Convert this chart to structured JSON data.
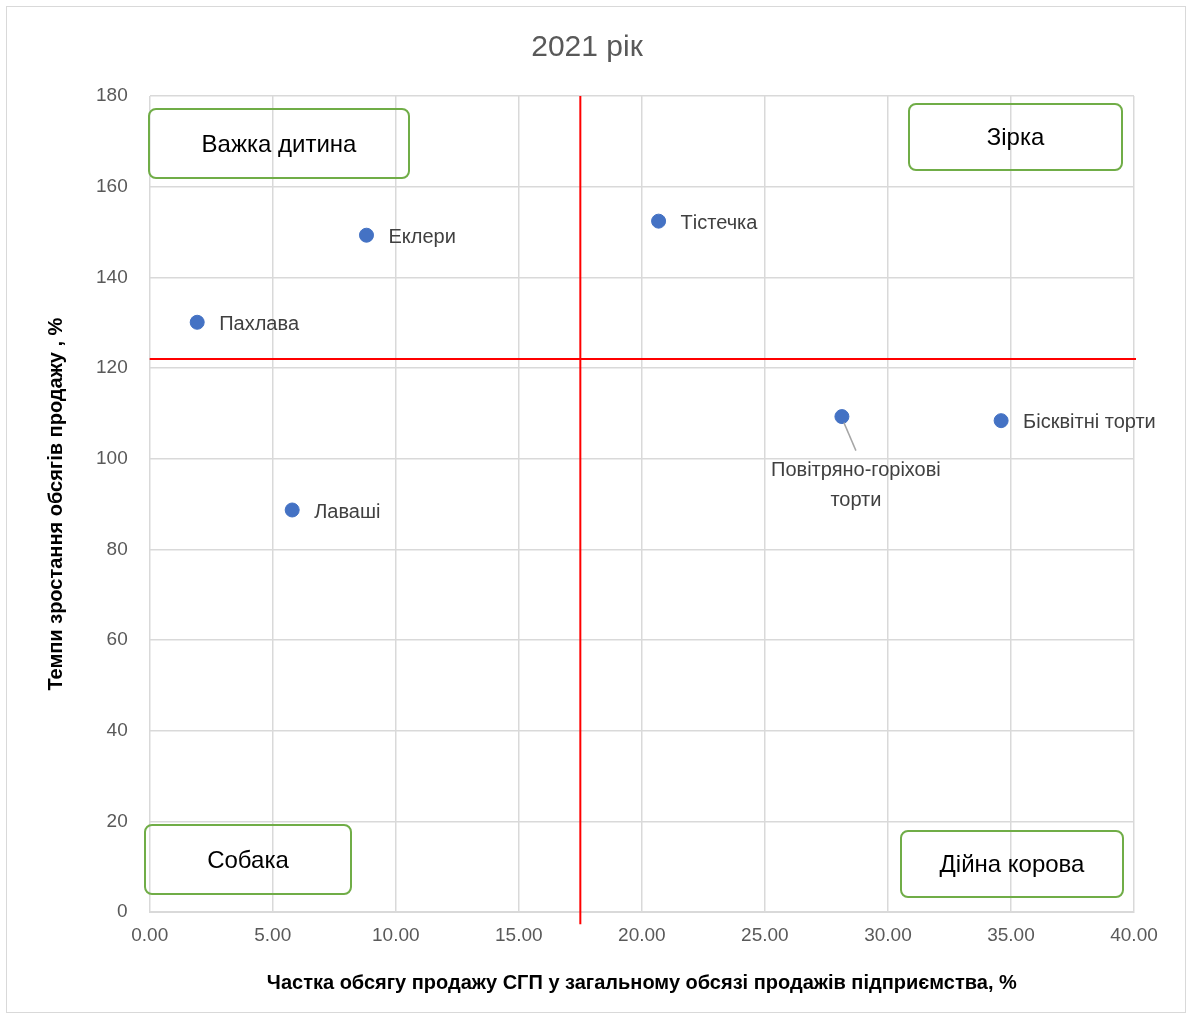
{
  "chart_data": {
    "type": "scatter",
    "title": "2021 рік",
    "xlabel": "Частка обсягу продажу СГП у загальному обсязі продажів підприємства, %",
    "ylabel": "Темпи зростання обсягів продажу , %",
    "x": [
      1.93,
      8.81,
      5.79,
      20.68,
      28.13,
      34.6
    ],
    "series": [
      {
        "color": "#4472c4",
        "values": [
          130.1,
          149.3,
          88.7,
          152.4,
          109.3,
          108.4
        ]
      }
    ],
    "xlim": [
      0,
      40
    ],
    "xticks": [
      {
        "value": 0,
        "label": "0.00"
      },
      {
        "value": 5,
        "label": "5.00"
      },
      {
        "value": 10,
        "label": "10.00"
      },
      {
        "value": 15,
        "label": "15.00"
      },
      {
        "value": 20,
        "label": "20.00"
      },
      {
        "value": 25,
        "label": "25.00"
      },
      {
        "value": 30,
        "label": "30.00"
      },
      {
        "value": 35,
        "label": "35.00"
      },
      {
        "value": 40,
        "label": "40.00"
      }
    ],
    "ylim": [
      0,
      180
    ],
    "yticks": [
      0,
      20,
      40,
      60,
      80,
      100,
      120,
      140,
      160,
      180
    ],
    "grid": true,
    "legend": false,
    "marker": "circle",
    "ref_lines": [
      {
        "axis": "x",
        "value": 17.5,
        "color": "#ff0000"
      },
      {
        "axis": "y",
        "value": 122,
        "color": "#ff0000"
      }
    ],
    "annotations": [
      {
        "text": "Пахлава",
        "x": 1.93,
        "y": 130.1
      },
      {
        "text": "Еклери",
        "x": 8.81,
        "y": 149.3
      },
      {
        "text": "Лаваші",
        "x": 5.79,
        "y": 88.7
      },
      {
        "text": "Тістечка",
        "x": 20.68,
        "y": 152.4
      },
      {
        "text": "Повітряно-горіхові торти",
        "x": 28.13,
        "y": 109.3
      },
      {
        "text": "Бісквітні торти",
        "x": 34.6,
        "y": 108.4
      },
      "Важка дитина",
      "Зірка",
      "Собака",
      "Дійна корова"
    ]
  }
}
